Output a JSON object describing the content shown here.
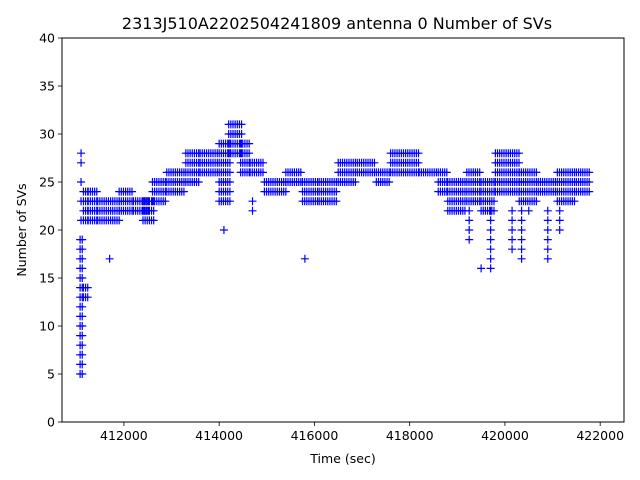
{
  "chart_data": {
    "type": "scatter",
    "title": "2313J510A2202504241809 antenna 0 Number of SVs",
    "xlabel": "Time (sec)",
    "ylabel": "Number of SVs",
    "xlim": [
      410700,
      422500
    ],
    "ylim": [
      0,
      40
    ],
    "xticks": [
      412000,
      414000,
      416000,
      418000,
      420000,
      422000
    ],
    "yticks": [
      0,
      5,
      10,
      15,
      20,
      25,
      30,
      35,
      40
    ],
    "marker": "+",
    "color": "#0000ff",
    "grid": false,
    "segments": [
      {
        "x0": 411080,
        "x1": 411150,
        "values": [
          5,
          6,
          7,
          8,
          9,
          10,
          11,
          12,
          13,
          14,
          15,
          16,
          17,
          18,
          19
        ]
      },
      {
        "x0": 411100,
        "x1": 411120,
        "values": [
          21,
          23,
          25,
          27,
          28
        ]
      },
      {
        "x0": 411150,
        "x1": 411250,
        "values": [
          13,
          14,
          21,
          22,
          23,
          24
        ]
      },
      {
        "x0": 411250,
        "x1": 411450,
        "values": [
          21,
          22,
          23,
          24
        ]
      },
      {
        "x0": 411450,
        "x1": 411900,
        "values": [
          21,
          22,
          23
        ]
      },
      {
        "x0": 411900,
        "x1": 412200,
        "values": [
          22,
          23,
          24
        ]
      },
      {
        "x0": 412200,
        "x1": 412550,
        "values": [
          22,
          23
        ]
      },
      {
        "x0": 412400,
        "x1": 412650,
        "values": [
          21,
          22,
          23
        ]
      },
      {
        "x0": 412600,
        "x1": 412900,
        "values": [
          23,
          24,
          25
        ]
      },
      {
        "x0": 412900,
        "x1": 413300,
        "values": [
          24,
          25,
          26
        ]
      },
      {
        "x0": 413300,
        "x1": 413600,
        "values": [
          25,
          26,
          27,
          28
        ]
      },
      {
        "x0": 413600,
        "x1": 414000,
        "values": [
          26,
          27,
          28
        ]
      },
      {
        "x0": 414000,
        "x1": 414250,
        "values": [
          23,
          24,
          25,
          26,
          27,
          28,
          29
        ]
      },
      {
        "x0": 414200,
        "x1": 414500,
        "values": [
          28,
          29,
          30,
          31
        ]
      },
      {
        "x0": 414450,
        "x1": 414650,
        "values": [
          26,
          27,
          28,
          29
        ]
      },
      {
        "x0": 414650,
        "x1": 414950,
        "values": [
          26,
          27
        ]
      },
      {
        "x0": 414950,
        "x1": 415400,
        "values": [
          24,
          25
        ]
      },
      {
        "x0": 415400,
        "x1": 415750,
        "values": [
          25,
          26
        ]
      },
      {
        "x0": 415750,
        "x1": 416100,
        "values": [
          23,
          24,
          25
        ]
      },
      {
        "x0": 416100,
        "x1": 416500,
        "values": [
          23,
          24,
          25
        ]
      },
      {
        "x0": 416500,
        "x1": 416900,
        "values": [
          25,
          26,
          27
        ]
      },
      {
        "x0": 416900,
        "x1": 417300,
        "values": [
          26,
          27
        ]
      },
      {
        "x0": 417300,
        "x1": 417600,
        "values": [
          25,
          26
        ]
      },
      {
        "x0": 417600,
        "x1": 418200,
        "values": [
          26,
          27,
          28
        ]
      },
      {
        "x0": 418200,
        "x1": 418600,
        "values": [
          26
        ]
      },
      {
        "x0": 418600,
        "x1": 418800,
        "values": [
          24,
          25,
          26
        ]
      },
      {
        "x0": 418800,
        "x1": 419200,
        "values": [
          22,
          23,
          24,
          25
        ]
      },
      {
        "x0": 419200,
        "x1": 419500,
        "values": [
          23,
          24,
          25,
          26
        ]
      },
      {
        "x0": 419500,
        "x1": 419800,
        "values": [
          22,
          23,
          24,
          25
        ]
      },
      {
        "x0": 419800,
        "x1": 420300,
        "values": [
          24,
          25,
          26,
          27,
          28
        ]
      },
      {
        "x0": 420300,
        "x1": 420700,
        "values": [
          23,
          24,
          25,
          26
        ]
      },
      {
        "x0": 420700,
        "x1": 421100,
        "values": [
          24,
          25
        ]
      },
      {
        "x0": 421100,
        "x1": 421500,
        "values": [
          23,
          24,
          25,
          26
        ]
      },
      {
        "x0": 421500,
        "x1": 421800,
        "values": [
          24,
          25,
          26
        ]
      }
    ],
    "spikes": [
      {
        "x": 411700,
        "values": [
          17
        ]
      },
      {
        "x": 414100,
        "values": [
          20
        ]
      },
      {
        "x": 414700,
        "values": [
          22,
          23
        ]
      },
      {
        "x": 415800,
        "values": [
          17
        ]
      },
      {
        "x": 419250,
        "values": [
          19,
          20,
          21,
          22
        ]
      },
      {
        "x": 419500,
        "values": [
          16
        ]
      },
      {
        "x": 419700,
        "values": [
          16,
          17,
          18,
          19,
          20,
          21,
          22
        ]
      },
      {
        "x": 420150,
        "values": [
          18,
          19,
          20,
          21,
          22
        ]
      },
      {
        "x": 420350,
        "values": [
          17,
          18,
          19,
          20,
          21,
          22
        ]
      },
      {
        "x": 420500,
        "values": [
          22
        ]
      },
      {
        "x": 420900,
        "values": [
          17,
          18,
          19,
          20,
          21,
          22
        ]
      },
      {
        "x": 421150,
        "values": [
          20,
          21,
          22
        ]
      }
    ]
  }
}
